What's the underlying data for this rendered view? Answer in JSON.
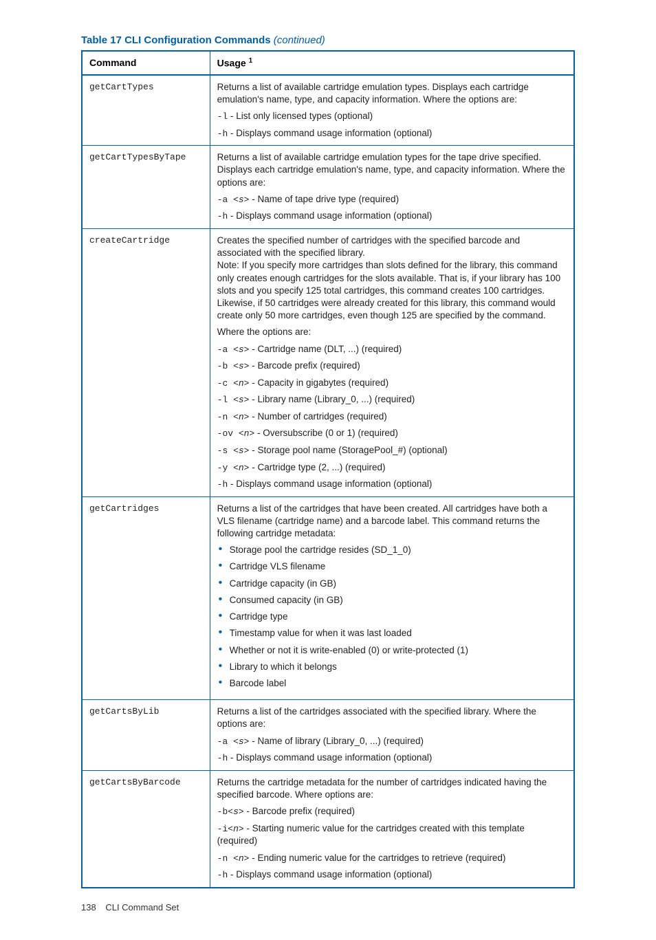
{
  "title_prefix": "Table 17 CLI Configuration Commands",
  "title_cont": "(continued)",
  "columns": {
    "c0": "Command",
    "c1": "Usage",
    "sup": "1"
  },
  "rows": [
    {
      "cmd": "getCartTypes",
      "intro": "Returns a list of available cartridge emulation types. Displays each cartridge emulation's name, type, and capacity information. Where the options are:",
      "lines": [
        {
          "flag": "-l",
          "arg": "",
          "desc": " - List only licensed types (optional)"
        },
        {
          "flag": "-h",
          "arg": "",
          "desc": " - Displays command usage information (optional)"
        }
      ]
    },
    {
      "cmd": "getCartTypesByTape",
      "intro": "Returns a list of available cartridge emulation types for the tape drive specified. Displays each cartridge emulation's name, type, and capacity information. Where the options are:",
      "lines": [
        {
          "flag": "-a ",
          "arg": "<s>",
          "desc": " - Name of tape drive type (required)"
        },
        {
          "flag": "-h",
          "arg": "",
          "desc": " - Displays command usage information (optional)"
        }
      ]
    },
    {
      "cmd": "createCartridge",
      "intro": "Creates the specified number of cartridges with the specified barcode and associated with the specified library.\nNote: If you specify more cartridges than slots defined for the library, this command only creates enough cartridges for the slots available. That is, if your library has 100 slots and you specify 125 total cartridges, this command creates 100 cartridges. Likewise, if 50 cartridges were already created for this library, this command would create only 50 more cartridges, even though 125 are specified by the command.",
      "where": "Where the options are:",
      "lines": [
        {
          "flag": "-a ",
          "arg": "<s>",
          "desc": " - Cartridge name (DLT, ...) (required)"
        },
        {
          "flag": "-b ",
          "arg": "<s>",
          "desc": " - Barcode prefix (required)"
        },
        {
          "flag": "-c ",
          "arg": "<n>",
          "desc": " - Capacity in gigabytes (required)"
        },
        {
          "flag": "-l ",
          "arg": "<s>",
          "desc": " - Library name (Library_0, ...) (required)"
        },
        {
          "flag": "-n ",
          "arg": "<n>",
          "desc": " - Number of cartridges (required)"
        },
        {
          "flag": "-ov ",
          "arg": "<n>",
          "desc": " - Oversubscribe (0 or 1) (required)"
        },
        {
          "flag": "-s ",
          "arg": "<s>",
          "desc": " - Storage pool name (StoragePool_#) (optional)"
        },
        {
          "flag": "-y ",
          "arg": "<n>",
          "desc": " - Cartridge type (2, ...) (required)"
        },
        {
          "flag": "-h",
          "arg": "",
          "desc": " - Displays command usage information (optional)"
        }
      ]
    },
    {
      "cmd": "getCartridges",
      "intro": "Returns a list of the cartridges that have been created. All cartridges have both a VLS filename (cartridge name) and a barcode label. This command returns the following cartridge metadata:",
      "bullets": [
        "Storage pool the cartridge resides (SD_1_0)",
        "Cartridge VLS filename",
        "Cartridge capacity (in GB)",
        "Consumed capacity (in GB)",
        "Cartridge type",
        "Timestamp value for when it was last loaded",
        "Whether or not it is write-enabled (0) or write-protected (1)",
        "Library to which it belongs",
        "Barcode label"
      ]
    },
    {
      "cmd": "getCartsByLib",
      "intro": "Returns a list of the cartridges associated with the specified library. Where the options are:",
      "lines": [
        {
          "flag": "-a ",
          "arg": "<s>",
          "desc": " - Name of library (Library_0, ...) (required)"
        },
        {
          "flag": "-h",
          "arg": "",
          "desc": " - Displays command usage information (optional)"
        }
      ]
    },
    {
      "cmd": "getCartsByBarcode",
      "intro": "Returns the cartridge metadata for the number of cartridges indicated having the specified barcode. Where options are:",
      "lines": [
        {
          "flag": "-b",
          "arg": "<s>",
          "desc": " - Barcode prefix (required)"
        },
        {
          "flag": "-i",
          "arg": "<n>",
          "desc": " - Starting numeric value for the cartridges created with this template (required)"
        },
        {
          "flag": "-n ",
          "arg": "<n>",
          "desc": " - Ending numeric value for the cartridges to retrieve (required)"
        },
        {
          "flag": "-h",
          "arg": "",
          "desc": " - Displays command usage information (optional)"
        }
      ]
    }
  ],
  "footer": {
    "page": "138",
    "section": "CLI Command Set"
  }
}
